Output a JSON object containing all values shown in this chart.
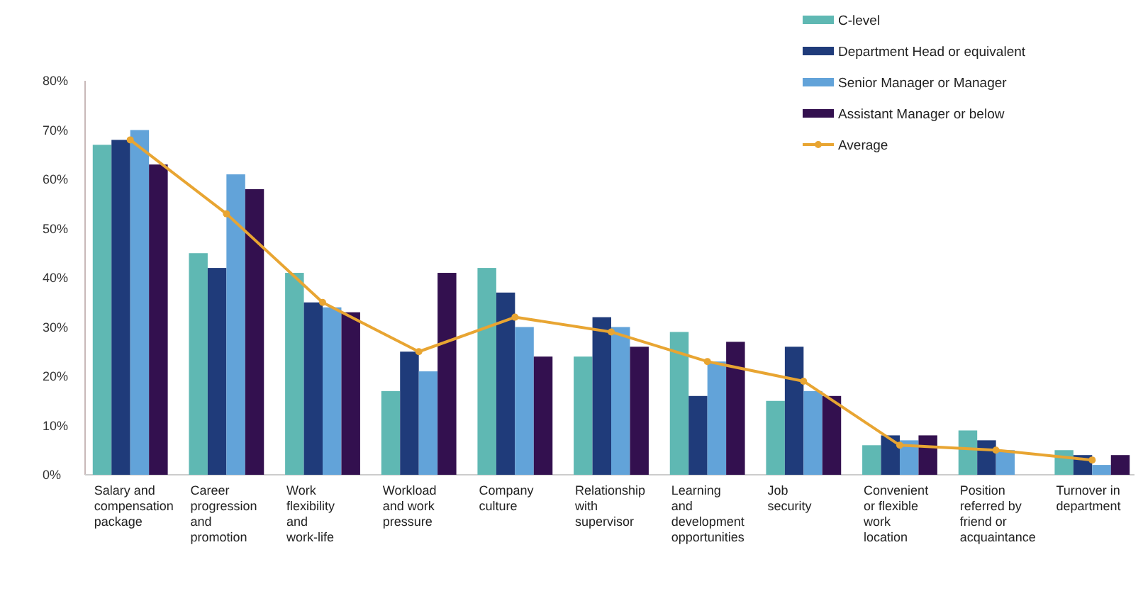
{
  "chart_data": {
    "type": "bar",
    "categories": [
      "Salary and compensation package",
      "Career progression and promotion",
      "Work flexibility and work-life",
      "Workload and work pressure",
      "Company culture",
      "Relationship with supervisor",
      "Learning and development opportunities",
      "Job security",
      "Convenient or flexible work location",
      "Position referred by friend or acquaintance",
      "Turnover in department"
    ],
    "series": [
      {
        "name": "C-level",
        "color": "#5fb8b3",
        "values": [
          67,
          45,
          41,
          17,
          42,
          24,
          29,
          15,
          6,
          9,
          5
        ]
      },
      {
        "name": "Department Head or equivalent",
        "color": "#1f3b7a",
        "values": [
          68,
          42,
          35,
          25,
          37,
          32,
          16,
          26,
          8,
          7,
          4
        ]
      },
      {
        "name": "Senior Manager or Manager",
        "color": "#62a3d9",
        "values": [
          70,
          61,
          34,
          21,
          30,
          30,
          23,
          17,
          7,
          5,
          2
        ]
      },
      {
        "name": "Assistant Manager or below",
        "color": "#33104f",
        "values": [
          63,
          58,
          33,
          41,
          24,
          26,
          27,
          16,
          8,
          0,
          4
        ]
      },
      {
        "name": "Average",
        "type": "line",
        "color": "#e8a532",
        "values": [
          68,
          53,
          35,
          25,
          32,
          29,
          23,
          19,
          6,
          5,
          3
        ]
      }
    ],
    "ylim": [
      0,
      80
    ],
    "yticks": [
      {
        "value": 0,
        "label": "0%"
      },
      {
        "value": 10,
        "label": "10%"
      },
      {
        "value": 20,
        "label": "20%"
      },
      {
        "value": 30,
        "label": "30%"
      },
      {
        "value": 40,
        "label": "40%"
      },
      {
        "value": 50,
        "label": "50%"
      },
      {
        "value": 60,
        "label": "60%"
      },
      {
        "value": 70,
        "label": "70%"
      },
      {
        "value": 80,
        "label": "80%"
      }
    ],
    "grid": false,
    "legend": "top right",
    "marker": "circle"
  }
}
